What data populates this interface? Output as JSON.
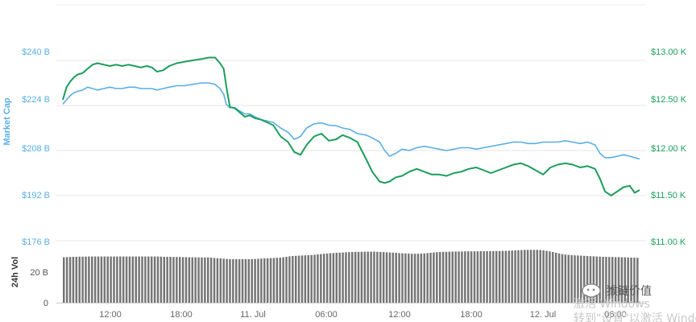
{
  "chart_data": [
    {
      "type": "line",
      "x_ticks": [
        "12:00",
        "18:00",
        "11. Jul",
        "06:00",
        "12:00",
        "18:00",
        "12. Jul",
        "06:00"
      ],
      "y_left": {
        "label": "Market Cap",
        "ticks": [
          "$176 B",
          "$192 B",
          "$208 B",
          "$224 B",
          "$240 B"
        ],
        "ylim": [
          176,
          248
        ]
      },
      "y_right": {
        "ticks": [
          "$11.00 K",
          "$11.50 K",
          "$12.00 K",
          "$12.50 K",
          "$13.00 K"
        ],
        "ylim": [
          11.0,
          13.15
        ]
      },
      "grid": true,
      "series": [
        {
          "color": "#5aaee6",
          "axis": "left",
          "points": [
            [
              0.0,
              224.5
            ],
            [
              0.3,
              226
            ],
            [
              0.6,
              227.5
            ],
            [
              0.9,
              228.5
            ],
            [
              1.2,
              229
            ],
            [
              1.6,
              229.5
            ],
            [
              2.0,
              230.5
            ],
            [
              2.4,
              230
            ],
            [
              2.8,
              229.5
            ],
            [
              3.3,
              230
            ],
            [
              3.8,
              230.5
            ],
            [
              4.3,
              230
            ],
            [
              4.8,
              230
            ],
            [
              5.3,
              230.5
            ],
            [
              5.8,
              230.5
            ],
            [
              6.3,
              230
            ],
            [
              6.8,
              230
            ],
            [
              7.2,
              230
            ],
            [
              7.6,
              229.5
            ],
            [
              8.1,
              230
            ],
            [
              8.6,
              230.5
            ],
            [
              9.2,
              231
            ],
            [
              9.8,
              231
            ],
            [
              10.5,
              231.5
            ],
            [
              11.2,
              232
            ],
            [
              11.8,
              232
            ],
            [
              12.3,
              231.5
            ],
            [
              12.7,
              230
            ],
            [
              13.0,
              228
            ],
            [
              13.2,
              224.5
            ],
            [
              13.5,
              223.2
            ],
            [
              13.9,
              223.2
            ],
            [
              14.3,
              222
            ],
            [
              14.7,
              221
            ],
            [
              15.1,
              221
            ],
            [
              15.5,
              220
            ],
            [
              16.0,
              219
            ],
            [
              16.5,
              218.5
            ],
            [
              17.0,
              218
            ],
            [
              17.6,
              216
            ],
            [
              18.2,
              214.5
            ],
            [
              18.7,
              212
            ],
            [
              19.2,
              213
            ],
            [
              19.7,
              216
            ],
            [
              20.3,
              217.5
            ],
            [
              20.9,
              217.8
            ],
            [
              21.5,
              217
            ],
            [
              22.1,
              216.8
            ],
            [
              22.6,
              216
            ],
            [
              23.2,
              215.5
            ],
            [
              23.8,
              214
            ],
            [
              24.5,
              213.5
            ],
            [
              25.0,
              212.5
            ],
            [
              25.6,
              211
            ],
            [
              26.0,
              208
            ],
            [
              26.4,
              206
            ],
            [
              26.9,
              207
            ],
            [
              27.4,
              208.5
            ],
            [
              28.0,
              208
            ],
            [
              28.6,
              209
            ],
            [
              29.2,
              209.5
            ],
            [
              29.8,
              209
            ],
            [
              30.4,
              208.5
            ],
            [
              31.0,
              208
            ],
            [
              31.6,
              208.5
            ],
            [
              32.2,
              209
            ],
            [
              32.8,
              209
            ],
            [
              33.4,
              208.5
            ],
            [
              34.0,
              209
            ],
            [
              34.6,
              209.5
            ],
            [
              35.2,
              210
            ],
            [
              35.8,
              210.5
            ],
            [
              36.4,
              211
            ],
            [
              37.0,
              211
            ],
            [
              37.6,
              210.5
            ],
            [
              38.2,
              210.5
            ],
            [
              38.8,
              211
            ],
            [
              39.4,
              211
            ],
            [
              40.0,
              211
            ],
            [
              40.6,
              211.5
            ],
            [
              41.2,
              211
            ],
            [
              41.8,
              210.5
            ],
            [
              42.4,
              211
            ],
            [
              43.0,
              210
            ],
            [
              43.4,
              207
            ],
            [
              43.8,
              205.5
            ],
            [
              44.3,
              205.5
            ],
            [
              44.8,
              206
            ],
            [
              45.3,
              206.5
            ],
            [
              45.8,
              206
            ],
            [
              46.2,
              205.5
            ],
            [
              46.6,
              205
            ]
          ]
        },
        {
          "color": "#1a9e5a",
          "axis": "left",
          "points": [
            [
              0.0,
              226
            ],
            [
              0.3,
              230.5
            ],
            [
              0.6,
              232.5
            ],
            [
              0.9,
              234
            ],
            [
              1.2,
              235
            ],
            [
              1.6,
              235.5
            ],
            [
              2.0,
              237
            ],
            [
              2.4,
              238.5
            ],
            [
              2.8,
              239
            ],
            [
              3.3,
              238.5
            ],
            [
              3.8,
              238
            ],
            [
              4.3,
              238.5
            ],
            [
              4.8,
              238
            ],
            [
              5.3,
              238.5
            ],
            [
              5.8,
              238
            ],
            [
              6.3,
              237.5
            ],
            [
              6.8,
              238
            ],
            [
              7.2,
              237.5
            ],
            [
              7.6,
              236
            ],
            [
              8.1,
              236.5
            ],
            [
              8.6,
              238
            ],
            [
              9.2,
              239
            ],
            [
              9.8,
              239.5
            ],
            [
              10.5,
              240
            ],
            [
              11.2,
              240.5
            ],
            [
              11.8,
              241
            ],
            [
              12.3,
              241
            ],
            [
              12.7,
              239
            ],
            [
              13.0,
              237
            ],
            [
              13.2,
              231
            ],
            [
              13.5,
              223.5
            ],
            [
              13.9,
              223
            ],
            [
              14.3,
              221.5
            ],
            [
              14.7,
              220
            ],
            [
              15.1,
              220.5
            ],
            [
              15.5,
              219.5
            ],
            [
              16.0,
              219
            ],
            [
              16.5,
              218
            ],
            [
              17.0,
              217
            ],
            [
              17.6,
              213
            ],
            [
              18.2,
              211
            ],
            [
              18.7,
              207.5
            ],
            [
              19.2,
              206.5
            ],
            [
              19.7,
              210
            ],
            [
              20.3,
              213
            ],
            [
              20.9,
              214
            ],
            [
              21.5,
              211.5
            ],
            [
              22.1,
              212
            ],
            [
              22.6,
              213.5
            ],
            [
              23.2,
              212.5
            ],
            [
              23.8,
              211
            ],
            [
              24.5,
              205
            ],
            [
              25.0,
              200.5
            ],
            [
              25.6,
              197
            ],
            [
              26.0,
              196.5
            ],
            [
              26.4,
              197
            ],
            [
              26.9,
              198.5
            ],
            [
              27.4,
              199
            ],
            [
              28.0,
              200.5
            ],
            [
              28.6,
              201.5
            ],
            [
              29.2,
              200.5
            ],
            [
              29.8,
              199.5
            ],
            [
              30.4,
              199.5
            ],
            [
              31.0,
              199
            ],
            [
              31.6,
              200
            ],
            [
              32.2,
              200.5
            ],
            [
              32.8,
              201.5
            ],
            [
              33.4,
              202
            ],
            [
              34.0,
              201
            ],
            [
              34.6,
              200
            ],
            [
              35.2,
              201
            ],
            [
              35.8,
              202
            ],
            [
              36.4,
              203
            ],
            [
              37.0,
              203.5
            ],
            [
              37.6,
              202.5
            ],
            [
              38.2,
              201
            ],
            [
              38.8,
              199.5
            ],
            [
              39.4,
              202
            ],
            [
              40.0,
              203
            ],
            [
              40.6,
              203.5
            ],
            [
              41.2,
              203
            ],
            [
              41.8,
              202
            ],
            [
              42.4,
              202.5
            ],
            [
              43.0,
              201.5
            ],
            [
              43.4,
              198
            ],
            [
              43.8,
              193.5
            ],
            [
              44.3,
              192
            ],
            [
              44.8,
              193.5
            ],
            [
              45.3,
              195
            ],
            [
              45.8,
              195.5
            ],
            [
              46.2,
              193
            ],
            [
              46.6,
              194
            ]
          ]
        }
      ]
    },
    {
      "type": "bar",
      "y_label": "24h Vol",
      "ticks": [
        "0",
        "20 B"
      ],
      "ylim": [
        0,
        38
      ],
      "color": "#757575",
      "values": [
        28.2,
        28.3,
        28.4,
        28.5,
        28.5,
        28.6,
        28.6,
        28.6,
        28.7,
        28.7,
        28.7,
        28.7,
        28.7,
        28.7,
        28.7,
        28.7,
        28.7,
        28.7,
        28.7,
        28.7,
        28.7,
        28.7,
        28.7,
        28.7,
        28.7,
        28.7,
        28.7,
        28.7,
        28.7,
        28.7,
        28.7,
        28.6,
        28.5,
        28.5,
        28.5,
        28.4,
        28.4,
        28.4,
        28.3,
        28.3,
        28.2,
        28.2,
        28.2,
        28.1,
        28.1,
        28.1,
        28.1,
        28.0,
        27.8,
        27.6,
        27.5,
        27.3,
        27.2,
        27.1,
        27.0,
        27.0,
        27.0,
        27.0,
        27.0,
        27.0,
        27.1,
        27.2,
        27.3,
        27.4,
        27.5,
        27.6,
        27.7,
        27.8,
        27.9,
        28.0,
        28.2,
        28.5,
        28.8,
        29.0,
        29.1,
        29.2,
        29.3,
        29.4,
        29.5,
        29.6,
        29.8,
        30.0,
        30.2,
        30.4,
        30.5,
        30.7,
        30.8,
        31.0,
        31.1,
        31.2,
        31.3,
        31.4,
        31.5,
        31.6,
        31.6,
        31.6,
        31.7,
        31.7,
        31.7,
        31.7,
        31.6,
        31.5,
        31.4,
        31.3,
        31.2,
        31.1,
        31.0,
        30.8,
        30.7,
        30.6,
        30.5,
        30.4,
        30.4,
        30.4,
        30.5,
        30.6,
        30.8,
        31.0,
        31.2,
        31.4,
        31.5,
        31.6,
        31.6,
        31.7,
        31.7,
        31.8,
        31.8,
        31.8,
        31.9,
        31.9,
        31.9,
        31.9,
        31.9,
        32.0,
        32.0,
        32.0,
        32.0,
        32.0,
        32.1,
        32.1,
        32.2,
        32.2,
        32.3,
        32.4,
        32.5,
        32.6,
        32.7,
        32.8,
        32.8,
        32.8,
        32.8,
        32.8,
        32.7,
        32.5,
        32.2,
        31.9,
        31.5,
        31.0,
        30.6,
        30.2,
        29.9,
        29.7,
        29.5,
        29.4,
        29.3,
        29.2,
        29.1,
        29.0,
        28.9,
        28.8,
        28.7,
        28.6,
        28.5,
        28.5,
        28.4,
        28.4,
        28.3,
        28.3,
        28.2,
        28.2,
        28.1,
        28.0,
        28.0,
        27.9
      ]
    }
  ],
  "overlay": {
    "brand_text": "猴链价值",
    "watermark_line1": "激活 Windows",
    "watermark_line2": "转到\"设置\"以激活 Windows"
  }
}
